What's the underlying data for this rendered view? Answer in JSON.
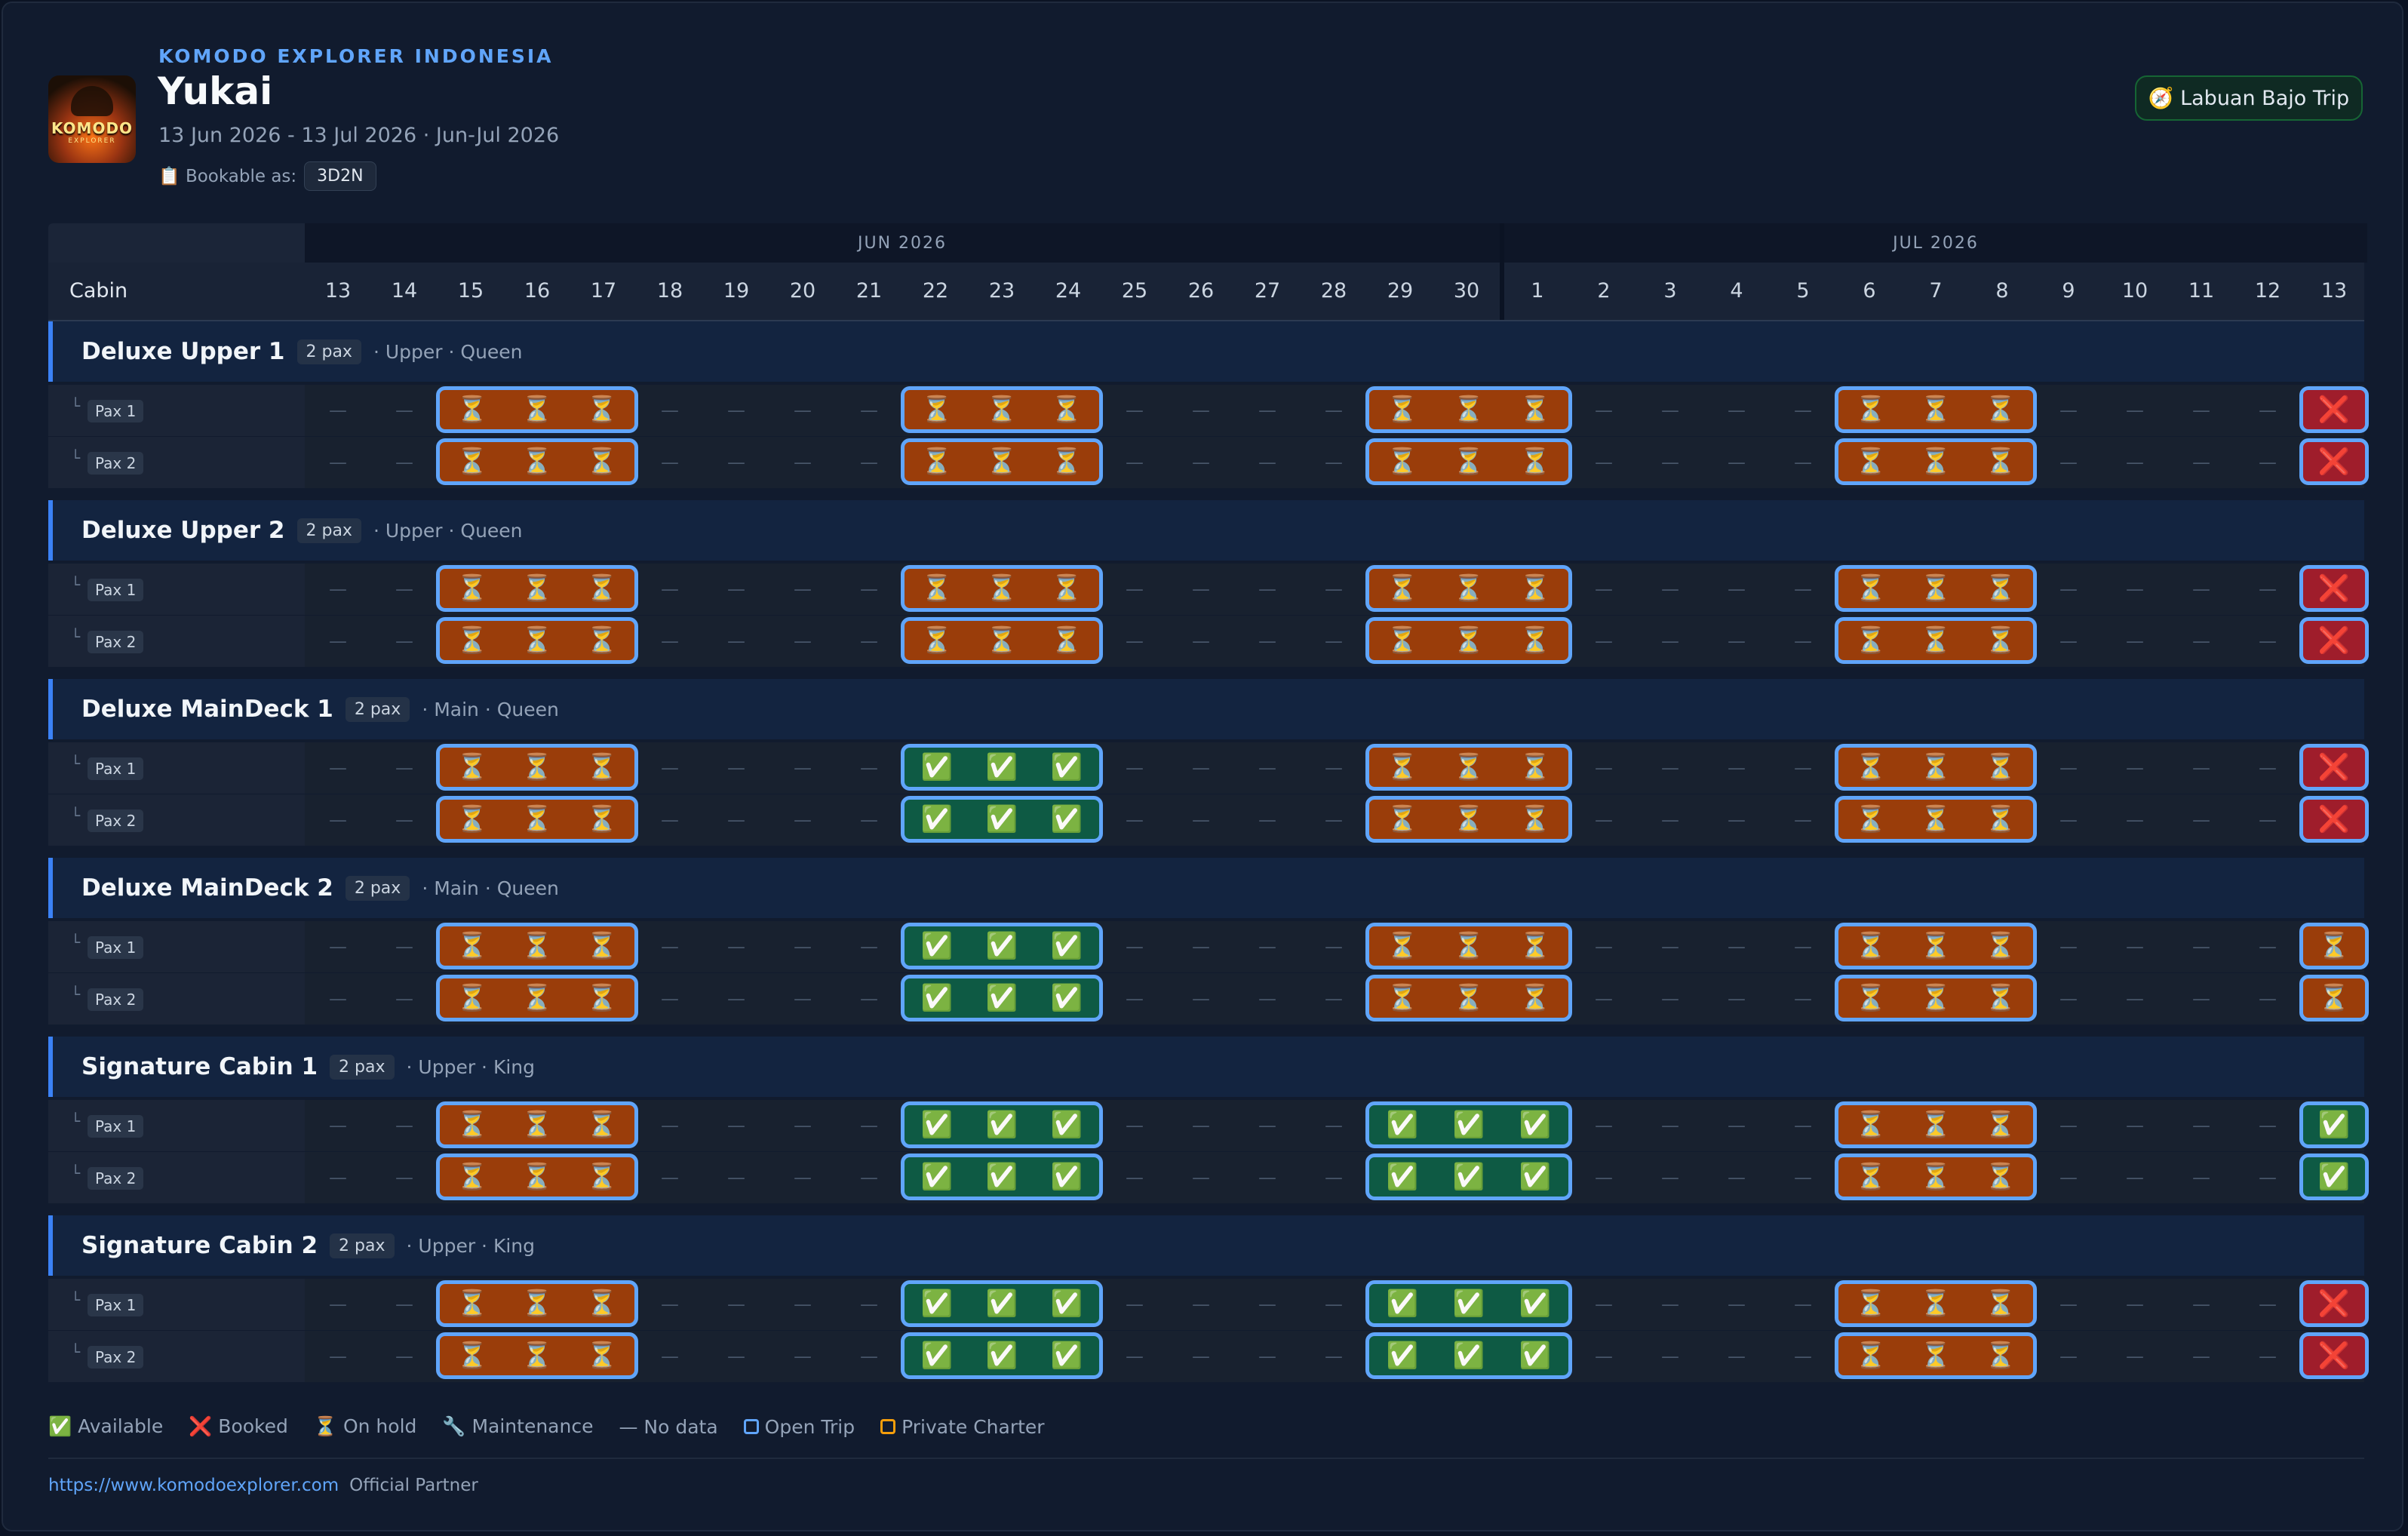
{
  "header": {
    "brand": "KOMODO EXPLORER INDONESIA",
    "boat_name": "Yukai",
    "dates": "13 Jun 2026 - 13 Jul 2026 · Jun-Jul 2026",
    "bookable_label": "📋 Bookable as:",
    "bookable_value": "3D2N",
    "trip_button": "🧭 Labuan Bajo Trip",
    "logo_text": "KOMODO",
    "logo_sub": "EXPLORER"
  },
  "grid": {
    "cabin_header": "Cabin",
    "months": [
      {
        "label": "JUN 2026"
      },
      {
        "label": "JUL 2026"
      }
    ],
    "days": [
      "13",
      "14",
      "15",
      "16",
      "17",
      "18",
      "19",
      "20",
      "21",
      "22",
      "23",
      "24",
      "25",
      "26",
      "27",
      "28",
      "29",
      "30",
      "1",
      "2",
      "3",
      "4",
      "5",
      "6",
      "7",
      "8",
      "9",
      "10",
      "11",
      "12",
      "13"
    ],
    "empty_mark": "—",
    "cabins": [
      {
        "name": "Deluxe Upper 1",
        "pax": "2 pax",
        "meta": "· Upper · Queen",
        "pax_rows": [
          {
            "label": "Pax 1",
            "blocks": [
              {
                "start": 2,
                "status": "hold",
                "len": 3
              },
              {
                "start": 9,
                "status": "hold",
                "len": 3
              },
              {
                "start": 16,
                "status": "hold",
                "len": 3
              },
              {
                "start": 23,
                "status": "hold",
                "len": 3
              },
              {
                "start": 30,
                "status": "booked",
                "len": 1
              }
            ]
          },
          {
            "label": "Pax 2",
            "blocks": [
              {
                "start": 2,
                "status": "hold",
                "len": 3
              },
              {
                "start": 9,
                "status": "hold",
                "len": 3
              },
              {
                "start": 16,
                "status": "hold",
                "len": 3
              },
              {
                "start": 23,
                "status": "hold",
                "len": 3
              },
              {
                "start": 30,
                "status": "booked",
                "len": 1
              }
            ]
          }
        ]
      },
      {
        "name": "Deluxe Upper 2",
        "pax": "2 pax",
        "meta": "· Upper · Queen",
        "pax_rows": [
          {
            "label": "Pax 1",
            "blocks": [
              {
                "start": 2,
                "status": "hold",
                "len": 3
              },
              {
                "start": 9,
                "status": "hold",
                "len": 3
              },
              {
                "start": 16,
                "status": "hold",
                "len": 3
              },
              {
                "start": 23,
                "status": "hold",
                "len": 3
              },
              {
                "start": 30,
                "status": "booked",
                "len": 1
              }
            ]
          },
          {
            "label": "Pax 2",
            "blocks": [
              {
                "start": 2,
                "status": "hold",
                "len": 3
              },
              {
                "start": 9,
                "status": "hold",
                "len": 3
              },
              {
                "start": 16,
                "status": "hold",
                "len": 3
              },
              {
                "start": 23,
                "status": "hold",
                "len": 3
              },
              {
                "start": 30,
                "status": "booked",
                "len": 1
              }
            ]
          }
        ]
      },
      {
        "name": "Deluxe MainDeck 1",
        "pax": "2 pax",
        "meta": "· Main · Queen",
        "pax_rows": [
          {
            "label": "Pax 1",
            "blocks": [
              {
                "start": 2,
                "status": "hold",
                "len": 3
              },
              {
                "start": 9,
                "status": "avail",
                "len": 3
              },
              {
                "start": 16,
                "status": "hold",
                "len": 3
              },
              {
                "start": 23,
                "status": "hold",
                "len": 3
              },
              {
                "start": 30,
                "status": "booked",
                "len": 1
              }
            ]
          },
          {
            "label": "Pax 2",
            "blocks": [
              {
                "start": 2,
                "status": "hold",
                "len": 3
              },
              {
                "start": 9,
                "status": "avail",
                "len": 3
              },
              {
                "start": 16,
                "status": "hold",
                "len": 3
              },
              {
                "start": 23,
                "status": "hold",
                "len": 3
              },
              {
                "start": 30,
                "status": "booked",
                "len": 1
              }
            ]
          }
        ]
      },
      {
        "name": "Deluxe MainDeck 2",
        "pax": "2 pax",
        "meta": "· Main · Queen",
        "pax_rows": [
          {
            "label": "Pax 1",
            "blocks": [
              {
                "start": 2,
                "status": "hold",
                "len": 3
              },
              {
                "start": 9,
                "status": "avail",
                "len": 3
              },
              {
                "start": 16,
                "status": "hold",
                "len": 3
              },
              {
                "start": 23,
                "status": "hold",
                "len": 3
              },
              {
                "start": 30,
                "status": "hold",
                "len": 1
              }
            ]
          },
          {
            "label": "Pax 2",
            "blocks": [
              {
                "start": 2,
                "status": "hold",
                "len": 3
              },
              {
                "start": 9,
                "status": "avail",
                "len": 3
              },
              {
                "start": 16,
                "status": "hold",
                "len": 3
              },
              {
                "start": 23,
                "status": "hold",
                "len": 3
              },
              {
                "start": 30,
                "status": "hold",
                "len": 1
              }
            ]
          }
        ]
      },
      {
        "name": "Signature Cabin 1",
        "pax": "2 pax",
        "meta": "· Upper · King",
        "pax_rows": [
          {
            "label": "Pax 1",
            "blocks": [
              {
                "start": 2,
                "status": "hold",
                "len": 3
              },
              {
                "start": 9,
                "status": "avail",
                "len": 3
              },
              {
                "start": 16,
                "status": "avail",
                "len": 3
              },
              {
                "start": 23,
                "status": "hold",
                "len": 3
              },
              {
                "start": 30,
                "status": "avail",
                "len": 1
              }
            ]
          },
          {
            "label": "Pax 2",
            "blocks": [
              {
                "start": 2,
                "status": "hold",
                "len": 3
              },
              {
                "start": 9,
                "status": "avail",
                "len": 3
              },
              {
                "start": 16,
                "status": "avail",
                "len": 3
              },
              {
                "start": 23,
                "status": "hold",
                "len": 3
              },
              {
                "start": 30,
                "status": "avail",
                "len": 1
              }
            ]
          }
        ]
      },
      {
        "name": "Signature Cabin 2",
        "pax": "2 pax",
        "meta": "· Upper · King",
        "pax_rows": [
          {
            "label": "Pax 1",
            "blocks": [
              {
                "start": 2,
                "status": "hold",
                "len": 3
              },
              {
                "start": 9,
                "status": "avail",
                "len": 3
              },
              {
                "start": 16,
                "status": "avail",
                "len": 3
              },
              {
                "start": 23,
                "status": "hold",
                "len": 3
              },
              {
                "start": 30,
                "status": "booked",
                "len": 1
              }
            ]
          },
          {
            "label": "Pax 2",
            "blocks": [
              {
                "start": 2,
                "status": "hold",
                "len": 3
              },
              {
                "start": 9,
                "status": "avail",
                "len": 3
              },
              {
                "start": 16,
                "status": "avail",
                "len": 3
              },
              {
                "start": 23,
                "status": "hold",
                "len": 3
              },
              {
                "start": 30,
                "status": "booked",
                "len": 1
              }
            ]
          }
        ]
      }
    ],
    "status_glyphs": {
      "hold": "⏳",
      "avail": "✅",
      "booked": "❌"
    }
  },
  "legend": {
    "available": "✅ Available",
    "booked": "❌ Booked",
    "on_hold": "⏳ On hold",
    "maintenance": "🔧 Maintenance",
    "no_data": "— No data",
    "open_trip": "Open Trip",
    "private_charter": "Private Charter"
  },
  "footer": {
    "url": "https://www.komodoexplorer.com",
    "partner": "Official Partner"
  },
  "colors": {
    "background": "#111b2e",
    "accent": "#60a5fa",
    "hold": "#9a3d0a",
    "available": "#0e5a44",
    "booked": "#9f1d2b",
    "private_charter": "#f59e0b"
  }
}
